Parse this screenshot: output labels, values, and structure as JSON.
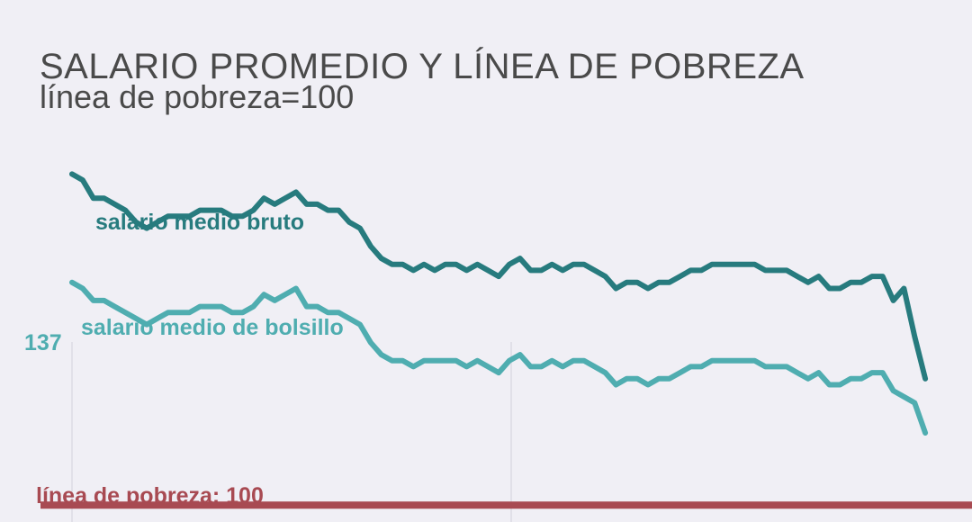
{
  "chart_data": {
    "type": "line",
    "title": "SALARIO PROMEDIO Y LÍNEA DE POBREZA",
    "subtitle": "línea de pobreza=100",
    "xlabel": "",
    "ylabel": "",
    "xlim": [
      0,
      81
    ],
    "ylim": [
      96,
      160
    ],
    "grid": "vertical",
    "colors": {
      "bruto": "#277b7e",
      "bolsillo": "#4fadb0",
      "poverty": "#a84a52"
    },
    "series": [
      {
        "name": "salario medio bruto",
        "values": [
          155,
          154,
          151,
          151,
          150,
          149,
          147,
          146,
          147,
          148,
          148,
          148,
          149,
          149,
          149,
          148,
          148,
          149,
          151,
          150,
          151,
          152,
          150,
          150,
          149,
          149,
          147,
          146,
          143,
          141,
          140,
          140,
          139,
          140,
          139,
          140,
          140,
          139,
          140,
          139,
          138,
          140,
          141,
          139,
          139,
          140,
          139,
          140,
          140,
          139,
          138,
          136,
          137,
          137,
          136,
          137,
          137,
          138,
          139,
          139,
          140,
          140,
          140,
          140,
          140,
          139,
          139,
          139,
          138,
          137,
          138,
          136,
          136,
          137,
          137,
          138,
          138,
          134,
          136,
          128,
          121
        ]
      },
      {
        "name": "salario medio de bolsillo",
        "values": [
          137,
          136,
          134,
          134,
          133,
          132,
          131,
          130,
          131,
          132,
          132,
          132,
          133,
          133,
          133,
          132,
          132,
          133,
          135,
          134,
          135,
          136,
          133,
          133,
          132,
          132,
          131,
          130,
          127,
          125,
          124,
          124,
          123,
          124,
          124,
          124,
          124,
          123,
          124,
          123,
          122,
          124,
          125,
          123,
          123,
          124,
          123,
          124,
          124,
          123,
          122,
          120,
          121,
          121,
          120,
          121,
          121,
          122,
          123,
          123,
          124,
          124,
          124,
          124,
          124,
          123,
          123,
          123,
          122,
          121,
          122,
          120,
          120,
          121,
          121,
          122,
          122,
          119,
          118,
          117,
          112
        ]
      }
    ],
    "poverty_line": 100,
    "labels": {
      "bruto": "salario medio bruto",
      "bolsillo": "salario medio de bolsillo",
      "start_value": "137",
      "poverty": "línea de pobreza: 100"
    }
  }
}
